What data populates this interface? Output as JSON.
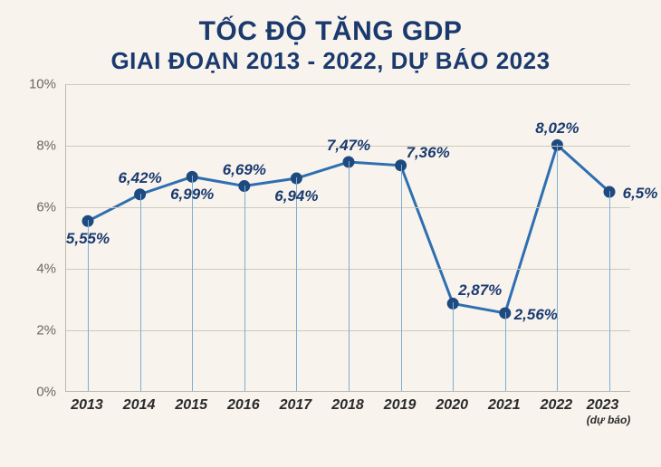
{
  "title": {
    "line1": "TỐC ĐỘ TĂNG GDP",
    "line2": "GIAI ĐOẠN 2013 - 2022, DỰ BÁO 2023",
    "color": "#1a3a6e",
    "line1_fontsize": 30,
    "line2_fontsize": 26
  },
  "chart": {
    "type": "line",
    "background_color": "#f8f3ed",
    "grid_color": "#cfc9bd",
    "axis_color": "#bdb8ad",
    "line_color": "#2f6fb0",
    "line_width": 3,
    "drop_line_color": "#7eaed6",
    "marker": {
      "fill": "#1e4a80",
      "stroke": "#1e4a80",
      "radius": 6
    },
    "ylim": [
      0,
      10
    ],
    "ytick_step": 2,
    "ytick_suffix": "%",
    "y_tick_labels": [
      "0%",
      "2%",
      "4%",
      "6%",
      "8%",
      "10%"
    ],
    "x_labels": [
      "2013",
      "2014",
      "2015",
      "2016",
      "2017",
      "2018",
      "2019",
      "2020",
      "2021",
      "2022",
      "2023"
    ],
    "x_sub_labels": [
      "",
      "",
      "",
      "",
      "",
      "",
      "",
      "",
      "",
      "",
      "(dự báo)"
    ],
    "values": [
      5.55,
      6.42,
      6.99,
      6.69,
      6.94,
      7.47,
      7.36,
      2.87,
      2.56,
      8.02,
      6.5
    ],
    "value_labels": [
      "5,55%",
      "6,42%",
      "6,99%",
      "6,69%",
      "6,94%",
      "7,47%",
      "7,36%",
      "2,87%",
      "2,56%",
      "8,02%",
      "6,5%"
    ],
    "label_position": [
      "below",
      "above",
      "below",
      "above",
      "below",
      "above",
      "above-right",
      "above-right",
      "right",
      "above",
      "right"
    ],
    "label_fontsize": 17,
    "label_color": "#1a3a6e",
    "x_label_fontsize": 16,
    "x_label_color": "#2b2b2b",
    "y_label_fontsize": 15,
    "y_label_color": "#6b6862"
  }
}
